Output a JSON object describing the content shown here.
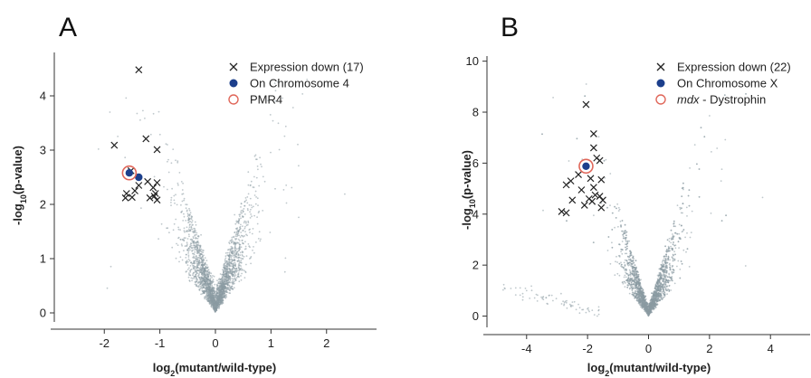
{
  "chart_data": [
    {
      "panel": "A",
      "type": "scatter",
      "xlabel": "log2(mutant/wild-type)",
      "ylabel": "-log10(p-value)",
      "xlim": [
        -2.9,
        2.9
      ],
      "ylim": [
        -0.1,
        4.8
      ],
      "xticks": [
        -2,
        -1,
        0,
        1,
        2
      ],
      "yticks": [
        0,
        1,
        2,
        3,
        4
      ],
      "legend_position": "top-right",
      "colors": {
        "background_points": "#8a9aa2",
        "cross": "#222222",
        "chromosome": "#1c3f8c",
        "highlight_ring": "#e0675a"
      },
      "series": [
        {
          "name": "Expression down (17)",
          "marker": "x",
          "points": [
            [
              -1.38,
              4.48
            ],
            [
              -1.82,
              3.09
            ],
            [
              -1.25,
              3.21
            ],
            [
              -1.05,
              3.01
            ],
            [
              -1.52,
              2.62
            ],
            [
              -1.22,
              2.42
            ],
            [
              -1.05,
              2.4
            ],
            [
              -1.12,
              2.31
            ],
            [
              -1.45,
              2.25
            ],
            [
              -1.6,
              2.2
            ],
            [
              -1.08,
              2.2
            ],
            [
              -1.5,
              2.13
            ],
            [
              -1.18,
              2.12
            ],
            [
              -1.05,
              2.08
            ],
            [
              -1.62,
              2.12
            ],
            [
              -1.38,
              2.35
            ],
            [
              -1.1,
              2.15
            ]
          ]
        },
        {
          "name": "On Chromosome 4",
          "marker": "filled-circle",
          "points": [
            [
              -1.55,
              2.58
            ],
            [
              -1.38,
              2.5
            ]
          ]
        },
        {
          "name": "PMR4",
          "marker": "open-circle",
          "points": [
            [
              -1.55,
              2.58
            ]
          ]
        }
      ]
    },
    {
      "panel": "B",
      "type": "scatter",
      "xlabel": "log2(mutant/wild-type)",
      "ylabel": "-log10(p-value)",
      "xlim": [
        -5.3,
        5.3
      ],
      "ylim": [
        -0.3,
        10.2
      ],
      "xticks": [
        -4,
        -2,
        0,
        2,
        4
      ],
      "yticks": [
        0,
        2,
        4,
        6,
        8,
        10
      ],
      "legend_position": "top-right",
      "colors": {
        "background_points": "#8a9aa2",
        "cross": "#222222",
        "chromosome": "#1c3f8c",
        "highlight_ring": "#e0675a"
      },
      "series": [
        {
          "name": "Expression down (22)",
          "marker": "x",
          "points": [
            [
              -2.05,
              8.3
            ],
            [
              -1.8,
              7.15
            ],
            [
              -1.8,
              6.6
            ],
            [
              -1.7,
              6.2
            ],
            [
              -1.6,
              6.1
            ],
            [
              -2.3,
              5.55
            ],
            [
              -2.55,
              5.3
            ],
            [
              -2.7,
              5.15
            ],
            [
              -1.9,
              5.4
            ],
            [
              -1.8,
              5.05
            ],
            [
              -1.55,
              5.35
            ],
            [
              -2.2,
              4.95
            ],
            [
              -2.5,
              4.55
            ],
            [
              -1.95,
              4.6
            ],
            [
              -1.75,
              4.75
            ],
            [
              -1.85,
              4.5
            ],
            [
              -1.6,
              4.7
            ],
            [
              -1.5,
              4.55
            ],
            [
              -2.1,
              4.35
            ],
            [
              -2.85,
              4.1
            ],
            [
              -2.7,
              4.05
            ],
            [
              -1.55,
              4.25
            ]
          ]
        },
        {
          "name": "On Chromosome X",
          "marker": "filled-circle",
          "points": [
            [
              -2.05,
              5.88
            ]
          ]
        },
        {
          "name_italic": "mdx",
          "name_rest": " - Dystrophin",
          "marker": "open-circle",
          "points": [
            [
              -2.05,
              5.88
            ]
          ]
        }
      ]
    }
  ],
  "labels": {
    "panel_a": "A",
    "panel_b": "B",
    "xlabel_prefix": "log",
    "xlabel_sub": "2",
    "xlabel_rest": "(mutant/wild-type)",
    "ylabel_prefix": "-log",
    "ylabel_sub": "10",
    "ylabel_rest": "(p-value)"
  }
}
